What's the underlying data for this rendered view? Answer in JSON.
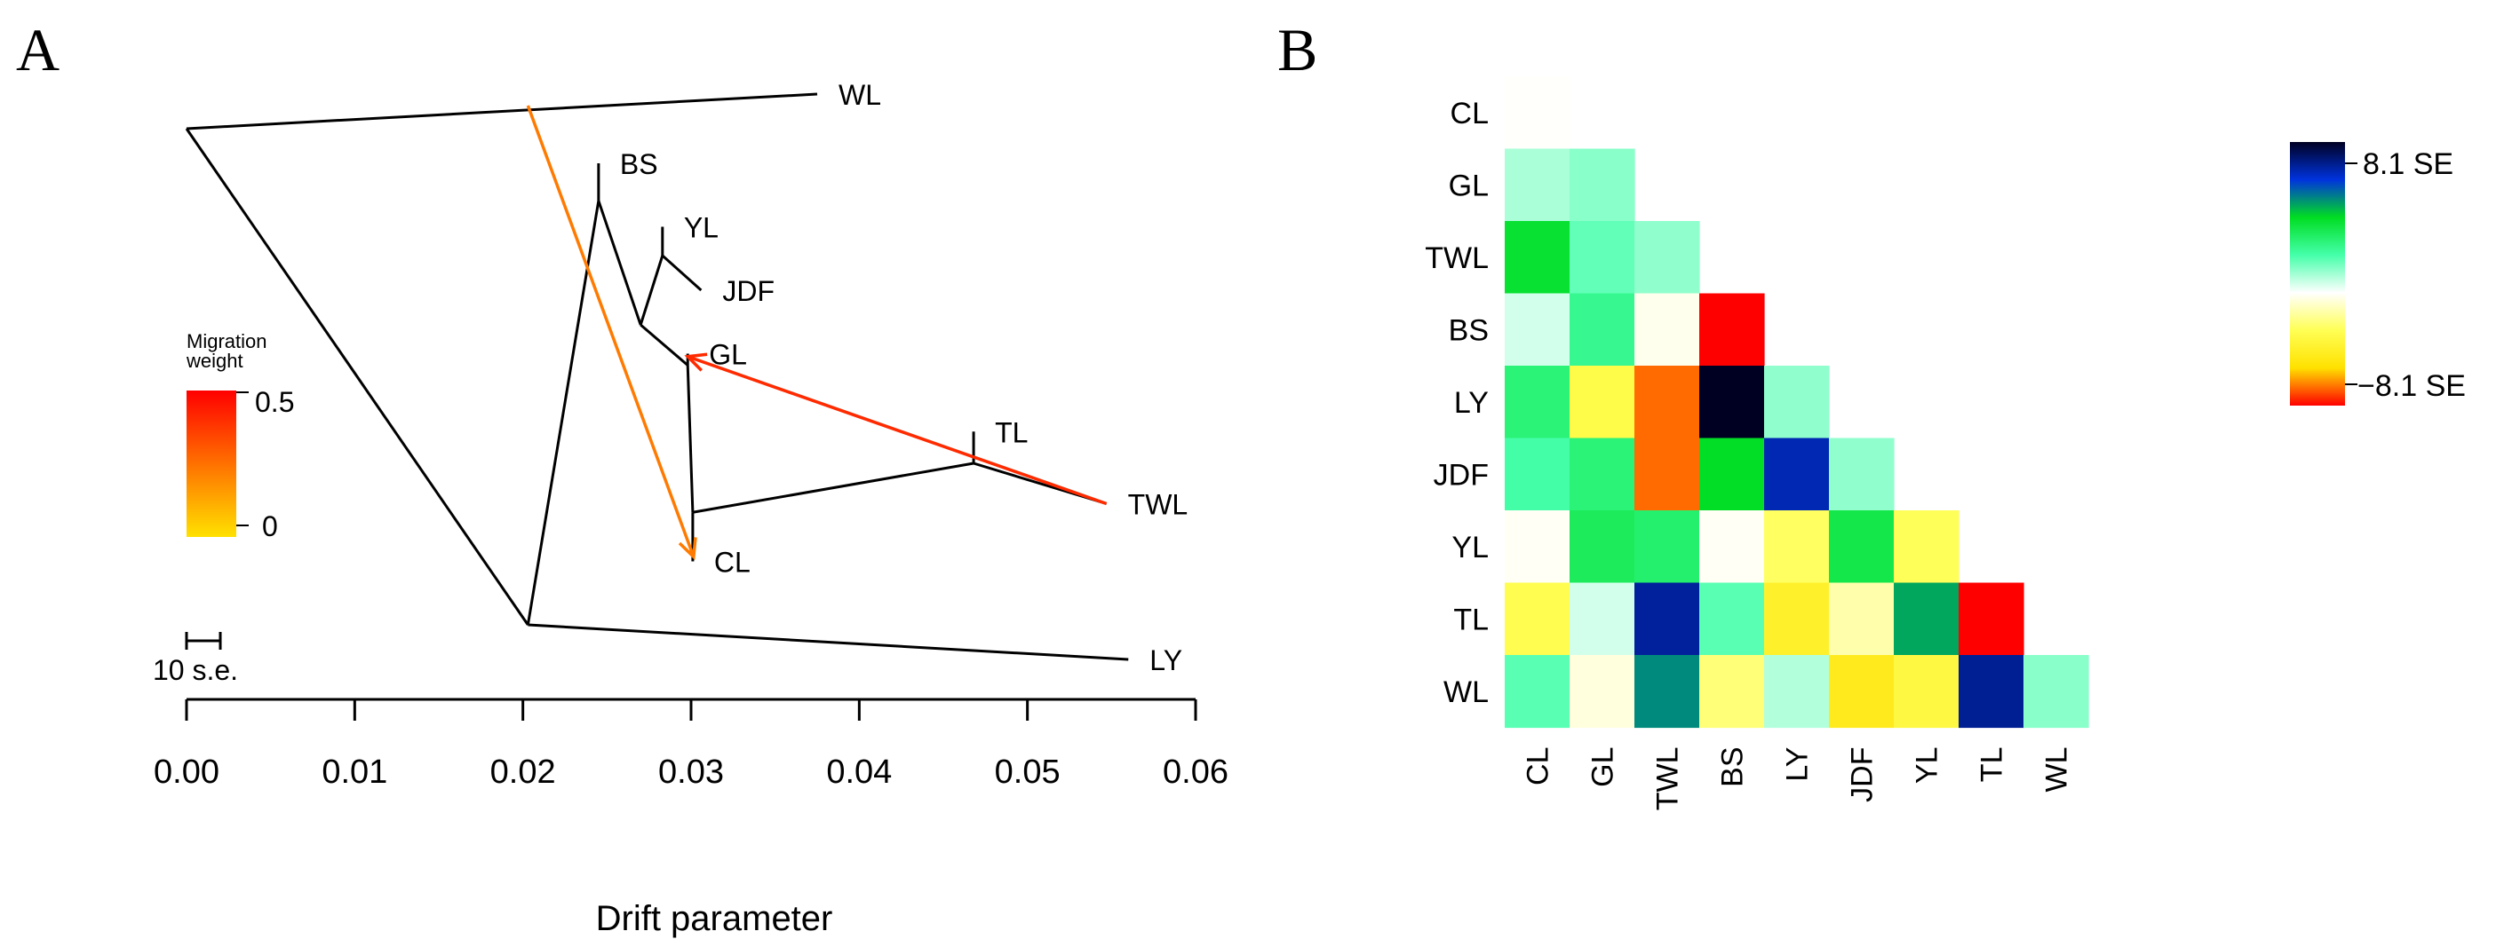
{
  "panel_a_letter": "A",
  "panel_b_letter": "B",
  "chart_data": [
    {
      "type": "tree",
      "xlabel": "Drift parameter",
      "xticks": [
        "0.00",
        "0.01",
        "0.02",
        "0.03",
        "0.04",
        "0.05",
        "0.06"
      ],
      "xlim": [
        0,
        0.06
      ],
      "scale_bar_label": "10 s.e.",
      "legend": {
        "title_line1": "Migration",
        "title_line2": "weight",
        "max_label": "0.5",
        "min_label": "0",
        "colors": [
          "#ffe100",
          "#ff0000"
        ]
      },
      "nodes": [
        {
          "id": "root",
          "drift": 0.0,
          "row": 1.0
        },
        {
          "id": "n2",
          "drift": 0.0203,
          "row": 9.6
        },
        {
          "id": "n3",
          "drift": 0.0245,
          "row": 2.25
        },
        {
          "id": "n4",
          "drift": 0.027,
          "row": 4.4
        },
        {
          "id": "n5",
          "drift": 0.0283,
          "row": 3.2
        },
        {
          "id": "n6",
          "drift": 0.0298,
          "row": 5.1
        },
        {
          "id": "n7",
          "drift": 0.0301,
          "row": 7.65
        },
        {
          "id": "n8",
          "drift": 0.0468,
          "row": 6.8
        }
      ],
      "tips": [
        {
          "name": "WL",
          "drift": 0.0375,
          "row": 0.4,
          "parent": "root"
        },
        {
          "name": "BS",
          "drift": 0.0245,
          "row": 1.6,
          "parent": "n3"
        },
        {
          "name": "YL",
          "drift": 0.0283,
          "row": 2.7,
          "parent": "n5"
        },
        {
          "name": "JDF",
          "drift": 0.0306,
          "row": 3.8,
          "parent": "n5"
        },
        {
          "name": "GL",
          "drift": 0.0298,
          "row": 4.9,
          "parent": "n6"
        },
        {
          "name": "TL",
          "drift": 0.0468,
          "row": 6.25,
          "parent": "n8"
        },
        {
          "name": "TWL",
          "drift": 0.0547,
          "row": 7.5,
          "parent": "n8"
        },
        {
          "name": "CL",
          "drift": 0.0301,
          "row": 8.5,
          "parent": "n7"
        },
        {
          "name": "LY",
          "drift": 0.056,
          "row": 10.2,
          "parent": "n2"
        }
      ],
      "edges": [
        [
          "root",
          "n2"
        ],
        [
          "n2",
          "n3"
        ],
        [
          "n3",
          "n4"
        ],
        [
          "n4",
          "n5"
        ],
        [
          "n4",
          "n6"
        ],
        [
          "n6",
          "n7"
        ],
        [
          "n7",
          "n8"
        ]
      ],
      "migrations": [
        {
          "from_drift": 0.0203,
          "from_row": 0.6,
          "to": "CL",
          "weight": 0.35,
          "color": "#ff7a00"
        },
        {
          "from_drift": 0.0547,
          "from_row": 7.5,
          "to": "GL",
          "weight": 0.5,
          "color": "#ff2a00"
        }
      ]
    },
    {
      "type": "heatmap",
      "labels": [
        "CL",
        "GL",
        "TWL",
        "BS",
        "LY",
        "JDF",
        "YL",
        "TL",
        "WL"
      ],
      "scale_max_label": "8.1 SE",
      "scale_min_label": "−8.1 SE",
      "scale_range": [
        -8.1,
        8.1
      ],
      "scale_colors": [
        "#ff0000",
        "#ffe100",
        "#ffff55",
        "#ffffff",
        "#44ffaa",
        "#00dd22",
        "#0033dd",
        "#000022"
      ],
      "values": [
        [
          -1.2
        ],
        [
          -0.1,
          0.3
        ],
        [
          3.2,
          0.8,
          0.2
        ],
        [
          -0.6,
          1.6,
          -1.4,
          -8.1
        ],
        [
          2.0,
          -3.8,
          -7.0,
          8.1,
          0.2
        ],
        [
          1.2,
          2.0,
          -7.0,
          3.4,
          6.3,
          0.2
        ],
        [
          -1.3,
          2.5,
          2.2,
          -1.3,
          -3.3,
          2.8,
          -3.4
        ],
        [
          -3.6,
          -0.6,
          6.6,
          0.9,
          -4.6,
          -2.3,
          4.2,
          -8.1
        ],
        [
          0.9,
          -1.6,
          4.6,
          -3.0,
          -0.2,
          -5.0,
          -4.0,
          6.7,
          0.3
        ]
      ]
    }
  ]
}
